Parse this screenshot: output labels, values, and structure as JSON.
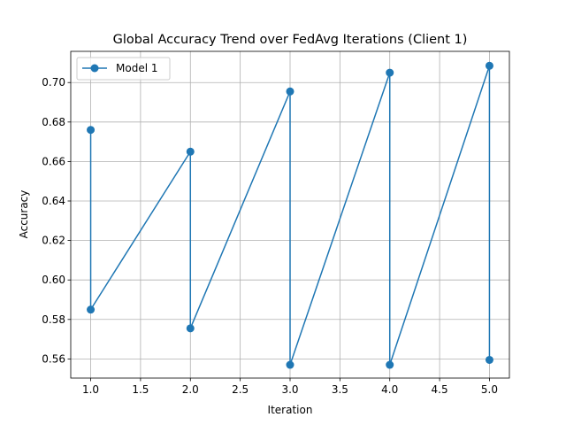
{
  "chart_data": {
    "type": "line",
    "title": "Global Accuracy Trend over FedAvg Iterations (Client 1)",
    "xlabel": "Iteration",
    "ylabel": "Accuracy",
    "xlim": [
      0.8,
      5.2
    ],
    "ylim": [
      0.5503,
      0.7158
    ],
    "xticks": [
      "1.0",
      "1.5",
      "2.0",
      "2.5",
      "3.0",
      "3.5",
      "4.0",
      "4.5",
      "5.0"
    ],
    "yticks": [
      "0.56",
      "0.58",
      "0.60",
      "0.62",
      "0.64",
      "0.66",
      "0.68",
      "0.70"
    ],
    "grid": true,
    "legend_position": "top-left",
    "series": [
      {
        "name": "Model 1",
        "color": "#1f77b4",
        "marker": "circle",
        "x": [
          1,
          1,
          2,
          2,
          3,
          3,
          4,
          4,
          5,
          5
        ],
        "y": [
          0.676,
          0.585,
          0.665,
          0.5755,
          0.6955,
          0.557,
          0.705,
          0.557,
          0.7085,
          0.5595
        ]
      }
    ]
  }
}
